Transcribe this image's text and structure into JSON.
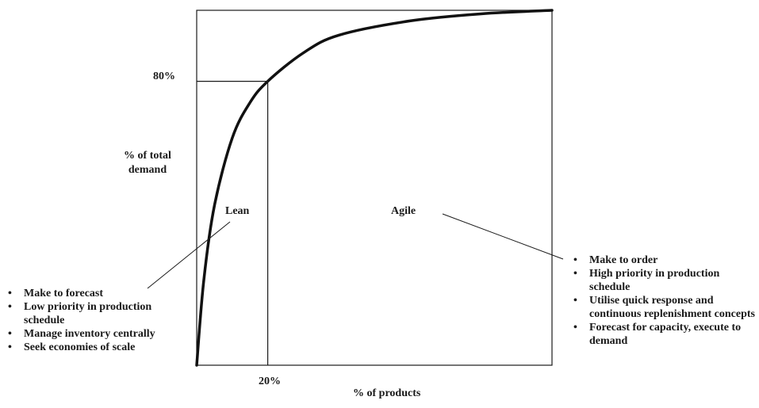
{
  "chart_data": {
    "type": "line",
    "xlabel": "% of products",
    "ylabel": "% of total demand",
    "annotations": {
      "x_marker": "20%",
      "y_marker": "80%"
    },
    "marker_point": {
      "x": 20,
      "y": 80
    },
    "series": [
      {
        "x": [
          0,
          2,
          5,
          10,
          15,
          20,
          30,
          40,
          60,
          80,
          100
        ],
        "y": [
          0,
          24,
          45,
          64,
          74,
          80,
          88,
          93,
          97,
          99,
          100
        ]
      }
    ],
    "xlim": [
      0,
      100
    ],
    "ylim": [
      0,
      100
    ]
  },
  "regions": {
    "lean": {
      "title": "Lean",
      "bullets": [
        "Make to forecast",
        "Low priority in production schedule",
        "Manage inventory centrally",
        "Seek economies of scale"
      ]
    },
    "agile": {
      "title": "Agile",
      "bullets": [
        "Make to order",
        "High priority in production schedule",
        "Utilise quick response and continuous replenishment concepts",
        "Forecast for capacity, execute to demand"
      ]
    }
  }
}
